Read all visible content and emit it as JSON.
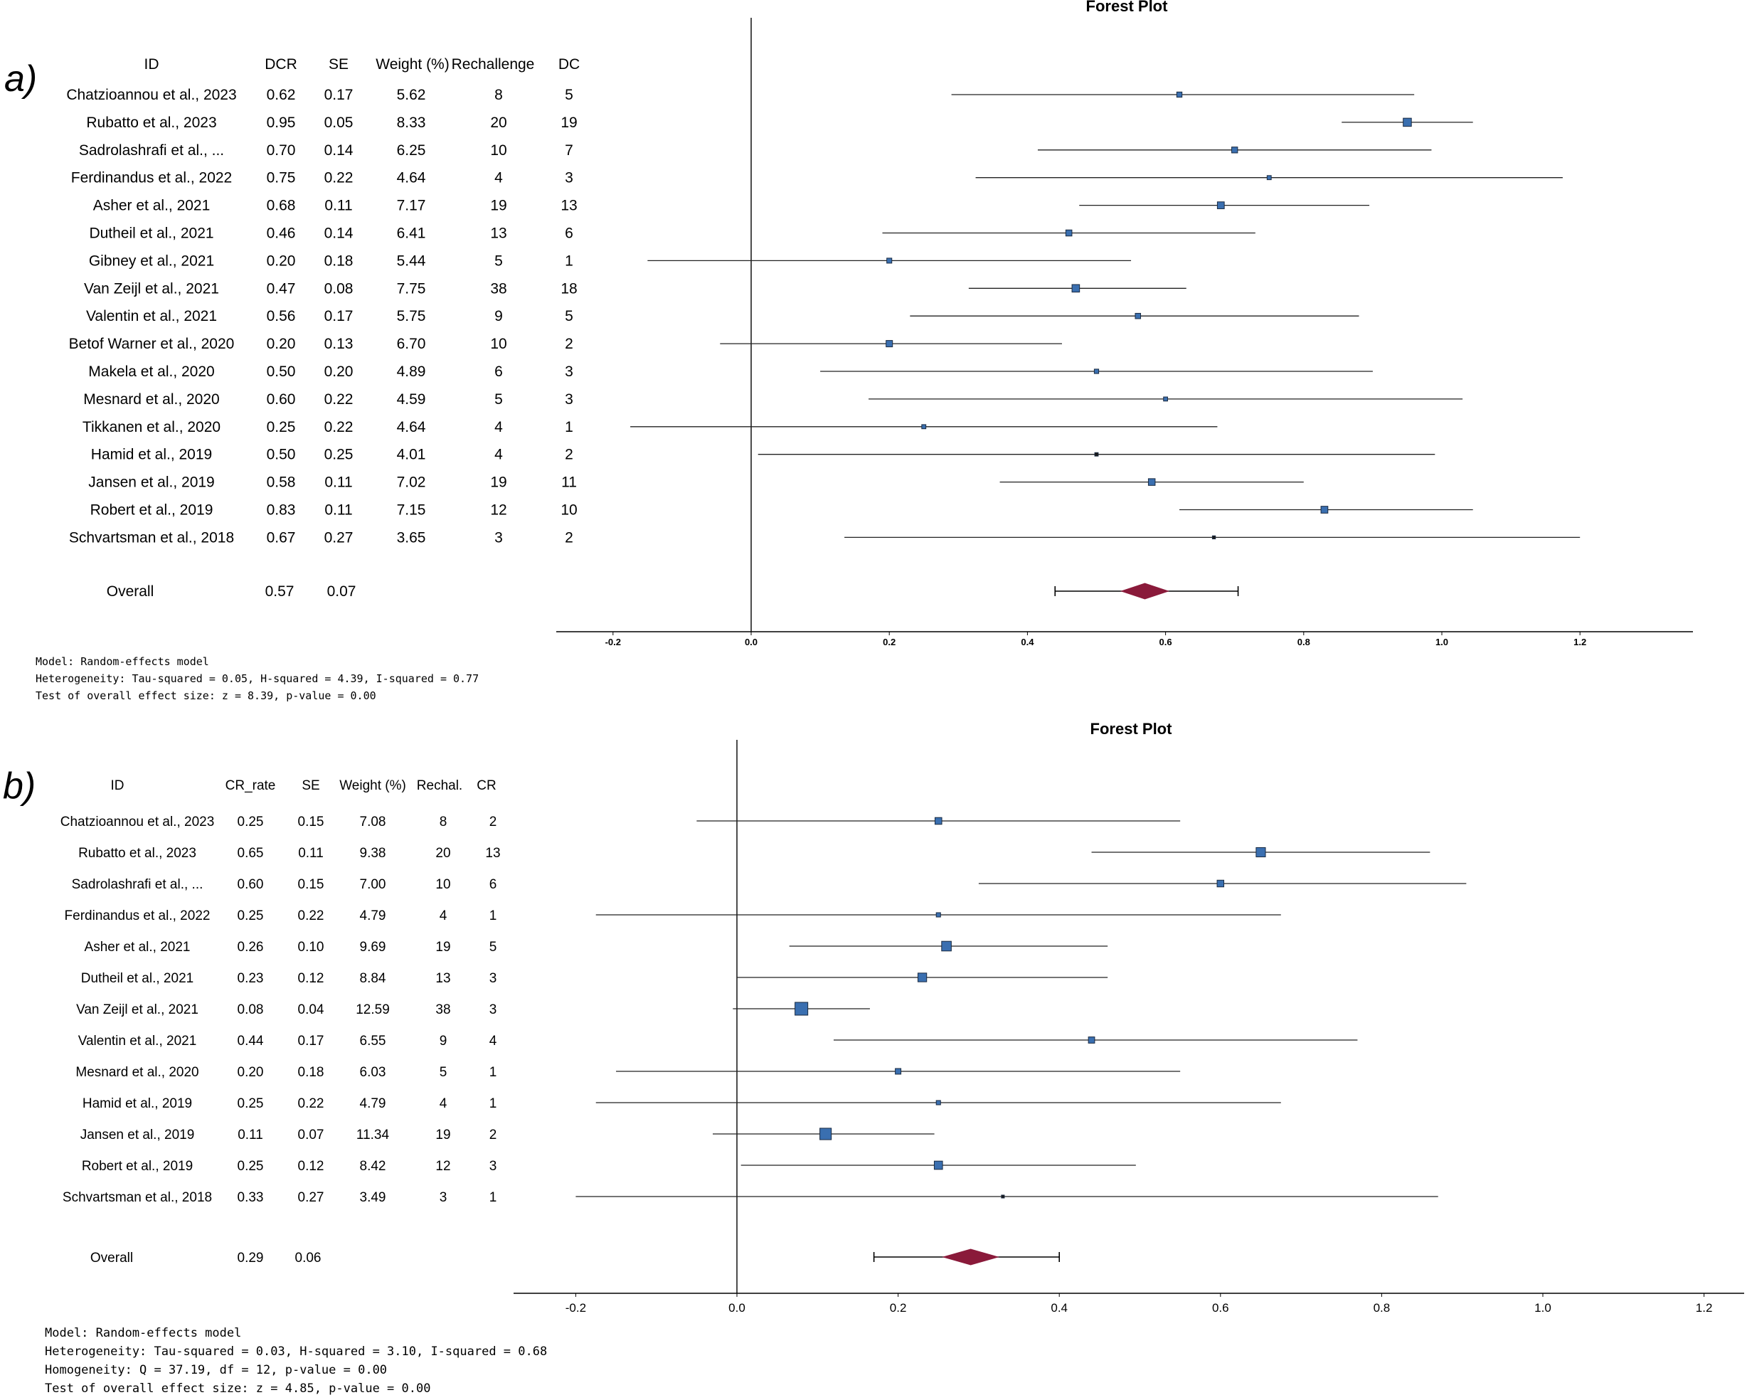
{
  "chart_data": [
    {
      "id": "a",
      "type": "forest",
      "panel_label": "a)",
      "title": "Forest Plot",
      "headers": [
        "ID",
        "DCR",
        "SE",
        "Weight (%)",
        "Rechallenge",
        "DC"
      ],
      "studies": [
        {
          "id": "Chatzioannou et al., 2023",
          "rate": "0.62",
          "se": "0.17",
          "weight": "5.62",
          "n": "8",
          "events": "5",
          "est": 0.62,
          "lo": 0.29,
          "hi": 0.96
        },
        {
          "id": "Rubatto et al., 2023",
          "rate": "0.95",
          "se": "0.05",
          "weight": "8.33",
          "n": "20",
          "events": "19",
          "est": 0.95,
          "lo": 0.855,
          "hi": 1.045
        },
        {
          "id": "Sadrolashrafi et al., ...",
          "rate": "0.70",
          "se": "0.14",
          "weight": "6.25",
          "n": "10",
          "events": "7",
          "est": 0.7,
          "lo": 0.415,
          "hi": 0.985
        },
        {
          "id": "Ferdinandus et al., 2022",
          "rate": "0.75",
          "se": "0.22",
          "weight": "4.64",
          "n": "4",
          "events": "3",
          "est": 0.75,
          "lo": 0.325,
          "hi": 1.175
        },
        {
          "id": "Asher et al., 2021",
          "rate": "0.68",
          "se": "0.11",
          "weight": "7.17",
          "n": "19",
          "events": "13",
          "est": 0.68,
          "lo": 0.475,
          "hi": 0.895
        },
        {
          "id": "Dutheil et al., 2021",
          "rate": "0.46",
          "se": "0.14",
          "weight": "6.41",
          "n": "13",
          "events": "6",
          "est": 0.46,
          "lo": 0.19,
          "hi": 0.73
        },
        {
          "id": "Gibney et al., 2021",
          "rate": "0.20",
          "se": "0.18",
          "weight": "5.44",
          "n": "5",
          "events": "1",
          "est": 0.2,
          "lo": -0.15,
          "hi": 0.55
        },
        {
          "id": "Van Zeijl et al., 2021",
          "rate": "0.47",
          "se": "0.08",
          "weight": "7.75",
          "n": "38",
          "events": "18",
          "est": 0.47,
          "lo": 0.315,
          "hi": 0.63
        },
        {
          "id": "Valentin et al., 2021",
          "rate": "0.56",
          "se": "0.17",
          "weight": "5.75",
          "n": "9",
          "events": "5",
          "est": 0.56,
          "lo": 0.23,
          "hi": 0.88
        },
        {
          "id": "Betof Warner et al., 2020",
          "rate": "0.20",
          "se": "0.13",
          "weight": "6.70",
          "n": "10",
          "events": "2",
          "est": 0.2,
          "lo": -0.045,
          "hi": 0.45
        },
        {
          "id": "Makela et al., 2020",
          "rate": "0.50",
          "se": "0.20",
          "weight": "4.89",
          "n": "6",
          "events": "3",
          "est": 0.5,
          "lo": 0.1,
          "hi": 0.9
        },
        {
          "id": "Mesnard et al., 2020",
          "rate": "0.60",
          "se": "0.22",
          "weight": "4.59",
          "n": "5",
          "events": "3",
          "est": 0.6,
          "lo": 0.17,
          "hi": 1.03
        },
        {
          "id": "Tikkanen et al., 2020",
          "rate": "0.25",
          "se": "0.22",
          "weight": "4.64",
          "n": "4",
          "events": "1",
          "est": 0.25,
          "lo": -0.175,
          "hi": 0.675
        },
        {
          "id": "Hamid et al., 2019",
          "rate": "0.50",
          "se": "0.25",
          "weight": "4.01",
          "n": "4",
          "events": "2",
          "est": 0.5,
          "lo": 0.01,
          "hi": 0.99
        },
        {
          "id": "Jansen et al., 2019",
          "rate": "0.58",
          "se": "0.11",
          "weight": "7.02",
          "n": "19",
          "events": "11",
          "est": 0.58,
          "lo": 0.36,
          "hi": 0.8
        },
        {
          "id": "Robert et al., 2019",
          "rate": "0.83",
          "se": "0.11",
          "weight": "7.15",
          "n": "12",
          "events": "10",
          "est": 0.83,
          "lo": 0.62,
          "hi": 1.045
        },
        {
          "id": "Schvartsman et al., 2018",
          "rate": "0.67",
          "se": "0.27",
          "weight": "3.65",
          "n": "3",
          "events": "2",
          "est": 0.67,
          "lo": 0.135,
          "hi": 1.2
        }
      ],
      "overall": {
        "label": "Overall",
        "rate": "0.57",
        "se": "0.07",
        "est": 0.57,
        "lo": 0.44,
        "hi": 0.705
      },
      "x_ticks": [
        "-0.2",
        "0.0",
        "0.2",
        "0.4",
        "0.6",
        "0.8",
        "1.0",
        "1.2"
      ],
      "xlim": [
        -0.28,
        1.37
      ],
      "notes": [
        "Model: Random-effects model",
        "Heterogeneity: Tau-squared = 0.05, H-squared = 4.39, I-squared = 0.77",
        "Test of overall effect size: z = 8.39, p-value = 0.00"
      ]
    },
    {
      "id": "b",
      "type": "forest",
      "panel_label": "b)",
      "title": "Forest Plot",
      "headers": [
        "ID",
        "CR_rate",
        "SE",
        "Weight (%)",
        "Rechal.",
        "CR"
      ],
      "studies": [
        {
          "id": "Chatzioannou et al., 2023",
          "rate": "0.25",
          "se": "0.15",
          "weight": "7.08",
          "n": "8",
          "events": "2",
          "est": 0.25,
          "lo": -0.05,
          "hi": 0.55
        },
        {
          "id": "Rubatto et al., 2023",
          "rate": "0.65",
          "se": "0.11",
          "weight": "9.38",
          "n": "20",
          "events": "13",
          "est": 0.65,
          "lo": 0.44,
          "hi": 0.86
        },
        {
          "id": "Sadrolashrafi et al., ...",
          "rate": "0.60",
          "se": "0.15",
          "weight": "7.00",
          "n": "10",
          "events": "6",
          "est": 0.6,
          "lo": 0.3,
          "hi": 0.905
        },
        {
          "id": "Ferdinandus et al., 2022",
          "rate": "0.25",
          "se": "0.22",
          "weight": "4.79",
          "n": "4",
          "events": "1",
          "est": 0.25,
          "lo": -0.175,
          "hi": 0.675
        },
        {
          "id": "Asher et al., 2021",
          "rate": "0.26",
          "se": "0.10",
          "weight": "9.69",
          "n": "19",
          "events": "5",
          "est": 0.26,
          "lo": 0.065,
          "hi": 0.46
        },
        {
          "id": "Dutheil et al., 2021",
          "rate": "0.23",
          "se": "0.12",
          "weight": "8.84",
          "n": "13",
          "events": "3",
          "est": 0.23,
          "lo": 0.0,
          "hi": 0.46
        },
        {
          "id": "Van Zeijl et al., 2021",
          "rate": "0.08",
          "se": "0.04",
          "weight": "12.59",
          "n": "38",
          "events": "3",
          "est": 0.08,
          "lo": -0.005,
          "hi": 0.165
        },
        {
          "id": "Valentin et al., 2021",
          "rate": "0.44",
          "se": "0.17",
          "weight": "6.55",
          "n": "9",
          "events": "4",
          "est": 0.44,
          "lo": 0.12,
          "hi": 0.77
        },
        {
          "id": "Mesnard et al., 2020",
          "rate": "0.20",
          "se": "0.18",
          "weight": "6.03",
          "n": "5",
          "events": "1",
          "est": 0.2,
          "lo": -0.15,
          "hi": 0.55
        },
        {
          "id": "Hamid et al., 2019",
          "rate": "0.25",
          "se": "0.22",
          "weight": "4.79",
          "n": "4",
          "events": "1",
          "est": 0.25,
          "lo": -0.175,
          "hi": 0.675
        },
        {
          "id": "Jansen et al., 2019",
          "rate": "0.11",
          "se": "0.07",
          "weight": "11.34",
          "n": "19",
          "events": "2",
          "est": 0.11,
          "lo": -0.03,
          "hi": 0.245
        },
        {
          "id": "Robert et al., 2019",
          "rate": "0.25",
          "se": "0.12",
          "weight": "8.42",
          "n": "12",
          "events": "3",
          "est": 0.25,
          "lo": 0.005,
          "hi": 0.495
        },
        {
          "id": "Schvartsman et al., 2018",
          "rate": "0.33",
          "se": "0.27",
          "weight": "3.49",
          "n": "3",
          "events": "1",
          "est": 0.33,
          "lo": -0.2,
          "hi": 0.87
        }
      ],
      "overall": {
        "label": "Overall",
        "rate": "0.29",
        "se": "0.06",
        "est": 0.29,
        "lo": 0.17,
        "hi": 0.4
      },
      "x_ticks": [
        "-0.2",
        "0.0",
        "0.2",
        "0.4",
        "0.6",
        "0.8",
        "1.0",
        "1.2"
      ],
      "xlim": [
        -0.275,
        1.255
      ],
      "notes": [
        "Model: Random-effects model",
        "Heterogeneity: Tau-squared = 0.03, H-squared = 3.10, I-squared = 0.68",
        "Homogeneity: Q = 37.19, df = 12, p-value = 0.00",
        "Test of overall effect size: z = 4.85, p-value = 0.00"
      ]
    }
  ],
  "colors": {
    "marker_fill": "#3a6fb0",
    "marker_stroke": "#1a2a40",
    "diamond": "#8a1a3a",
    "line": "#000000"
  }
}
